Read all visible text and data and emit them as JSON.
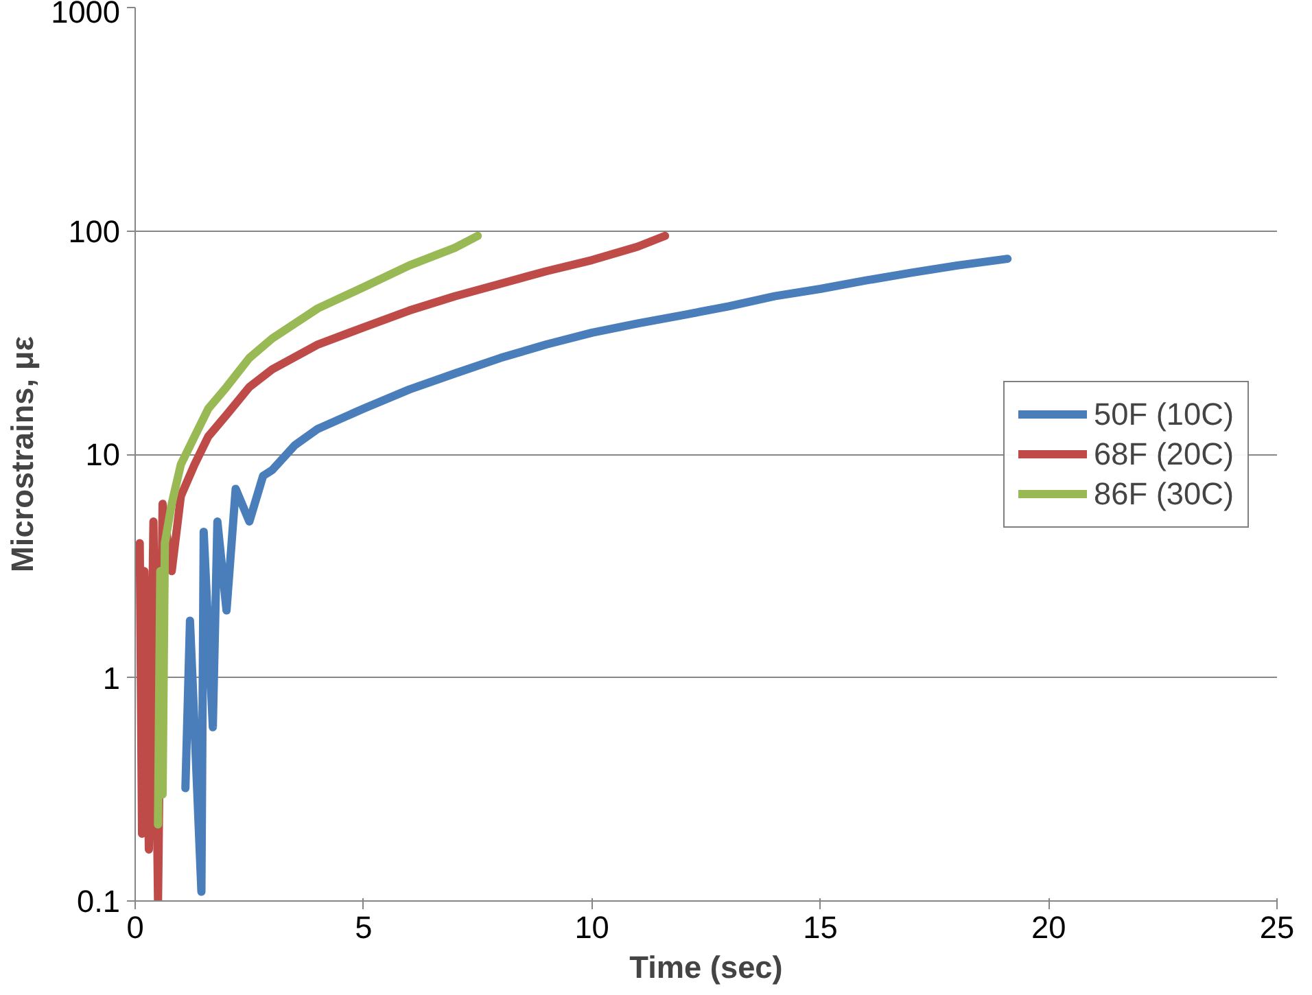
{
  "chart_data": {
    "type": "line",
    "xlabel": "Time (sec)",
    "ylabel": "Microstrains, με",
    "log": "y",
    "grid": "y",
    "legend": "right",
    "xlim": [
      0,
      25
    ],
    "xticks": [
      0,
      5,
      10,
      15,
      20,
      25
    ],
    "ylim": [
      0.1,
      1000
    ],
    "yticks": [
      0.1,
      1,
      10,
      100,
      1000
    ],
    "series": [
      {
        "name": "50F (10C)",
        "color": "#4a7ebb",
        "x": [
          1.1,
          1.2,
          1.3,
          1.45,
          1.5,
          1.7,
          1.8,
          2.0,
          2.2,
          2.5,
          2.8,
          3,
          3.5,
          4,
          5,
          6,
          7,
          8,
          9,
          10,
          11,
          12,
          13,
          14,
          15,
          16,
          17,
          18,
          19.1
        ],
        "values": [
          0.32,
          1.8,
          0.6,
          0.11,
          4.5,
          0.6,
          5,
          2,
          7,
          5,
          8,
          8.5,
          11,
          13,
          16,
          19.5,
          23,
          27,
          31,
          35,
          38.5,
          42,
          46,
          51,
          55,
          60,
          65,
          70,
          75
        ]
      },
      {
        "name": "68F (20C)",
        "color": "#be4b48",
        "x": [
          0.1,
          0.15,
          0.2,
          0.3,
          0.4,
          0.5,
          0.6,
          0.8,
          1,
          1.3,
          1.6,
          2,
          2.5,
          3,
          4,
          5,
          6,
          7,
          8,
          9,
          10,
          11,
          11.6
        ],
        "values": [
          4,
          0.2,
          3,
          0.17,
          5,
          0.1,
          6,
          3,
          6.5,
          9,
          12,
          15,
          20,
          24,
          31,
          37,
          44,
          51,
          58,
          66,
          74,
          85,
          95
        ]
      },
      {
        "name": "86F (30C)",
        "color": "#98b954",
        "x": [
          0.5,
          0.55,
          0.6,
          0.65,
          0.8,
          1,
          1.3,
          1.6,
          2,
          2.5,
          3,
          4,
          5,
          6,
          7,
          7.5
        ],
        "values": [
          0.22,
          3,
          0.3,
          4,
          6,
          9,
          12,
          16,
          20,
          27,
          33,
          45,
          56,
          70,
          84,
          95
        ]
      }
    ]
  }
}
